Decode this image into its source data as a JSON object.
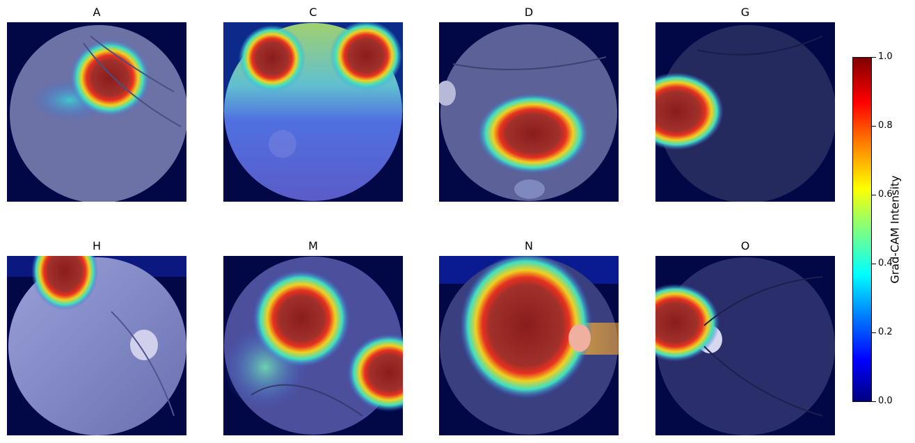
{
  "panels": [
    {
      "title": "A"
    },
    {
      "title": "C"
    },
    {
      "title": "D"
    },
    {
      "title": "G"
    },
    {
      "title": "H"
    },
    {
      "title": "M"
    },
    {
      "title": "N"
    },
    {
      "title": "O"
    }
  ],
  "colorbar": {
    "label": "Grad-CAM Intensity",
    "ticks": [
      "0.0",
      "0.2",
      "0.4",
      "0.6",
      "0.8",
      "1.0"
    ],
    "range": [
      0.0,
      1.0
    ],
    "colormap": "jet"
  }
}
